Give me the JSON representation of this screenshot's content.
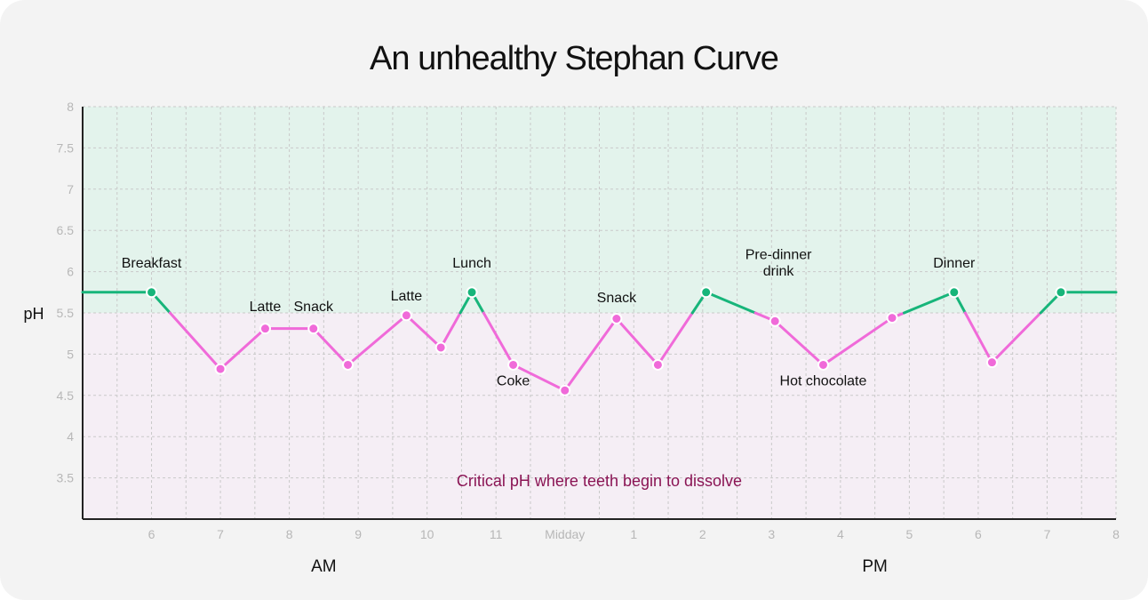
{
  "chart_data": {
    "type": "line",
    "title": "An unhealthy Stephan Curve",
    "ylabel": "pH",
    "ylim": [
      3,
      8
    ],
    "yticks": [
      "3.5",
      "4",
      "4.5",
      "5",
      "5.5",
      "6",
      "6.5",
      "7",
      "7.5",
      "8"
    ],
    "xlim": [
      5,
      20
    ],
    "xticks": [
      {
        "x": 6,
        "label": "6"
      },
      {
        "x": 7,
        "label": "7"
      },
      {
        "x": 8,
        "label": "8"
      },
      {
        "x": 9,
        "label": "9"
      },
      {
        "x": 10,
        "label": "10"
      },
      {
        "x": 11,
        "label": "11"
      },
      {
        "x": 12,
        "label": "Midday"
      },
      {
        "x": 13,
        "label": "1"
      },
      {
        "x": 14,
        "label": "2"
      },
      {
        "x": 15,
        "label": "3"
      },
      {
        "x": 16,
        "label": "4"
      },
      {
        "x": 17,
        "label": "5"
      },
      {
        "x": 18,
        "label": "6"
      },
      {
        "x": 19,
        "label": "7"
      },
      {
        "x": 20,
        "label": "8"
      }
    ],
    "periods": [
      {
        "label": "AM",
        "x": 8.5
      },
      {
        "label": "PM",
        "x": 16.5
      }
    ],
    "critical_ph": 5.5,
    "critical_label": "Critical pH where teeth begin to dissolve",
    "colors": {
      "safe_zone": "#e3f3ec",
      "danger_zone": "#f5eef5",
      "safe_line": "#17b57a",
      "danger_line": "#f06ad9",
      "critical_text": "#8a1454"
    },
    "series": [
      {
        "name": "pH",
        "points": [
          {
            "x": 5.0,
            "y": 5.75,
            "label": ""
          },
          {
            "x": 6.0,
            "y": 5.75,
            "label": "Breakfast"
          },
          {
            "x": 7.0,
            "y": 4.82,
            "label": ""
          },
          {
            "x": 7.65,
            "y": 5.31,
            "label": "Latte"
          },
          {
            "x": 8.35,
            "y": 5.31,
            "label": "Snack"
          },
          {
            "x": 8.85,
            "y": 4.87,
            "label": ""
          },
          {
            "x": 9.7,
            "y": 5.47,
            "label": "Latte"
          },
          {
            "x": 10.2,
            "y": 5.08,
            "label": ""
          },
          {
            "x": 10.65,
            "y": 5.75,
            "label": "Lunch"
          },
          {
            "x": 11.25,
            "y": 4.87,
            "label": "Coke"
          },
          {
            "x": 12.0,
            "y": 4.56,
            "label": ""
          },
          {
            "x": 12.75,
            "y": 5.43,
            "label": "Snack"
          },
          {
            "x": 13.35,
            "y": 4.87,
            "label": ""
          },
          {
            "x": 14.05,
            "y": 5.75,
            "label": ""
          },
          {
            "x": 15.05,
            "y": 5.4,
            "label": "Pre-dinner drink"
          },
          {
            "x": 15.75,
            "y": 4.87,
            "label": "Hot chocolate"
          },
          {
            "x": 16.75,
            "y": 5.44,
            "label": ""
          },
          {
            "x": 17.65,
            "y": 5.75,
            "label": "Dinner"
          },
          {
            "x": 18.2,
            "y": 4.9,
            "label": ""
          },
          {
            "x": 19.2,
            "y": 5.75,
            "label": ""
          },
          {
            "x": 20.0,
            "y": 5.75,
            "label": ""
          }
        ]
      }
    ],
    "annotations": [
      {
        "id": "breakfast",
        "text": "Breakfast",
        "x": 6.0,
        "y": 6.05
      },
      {
        "id": "latte-1",
        "text": "Latte",
        "x": 7.65,
        "y": 5.52
      },
      {
        "id": "snack-1",
        "text": "Snack",
        "x": 8.35,
        "y": 5.52
      },
      {
        "id": "latte-2",
        "text": "Latte",
        "x": 9.7,
        "y": 5.65
      },
      {
        "id": "lunch",
        "text": "Lunch",
        "x": 10.65,
        "y": 6.05
      },
      {
        "id": "coke",
        "text": "Coke",
        "x": 11.25,
        "y": 4.62
      },
      {
        "id": "snack-2",
        "text": "Snack",
        "x": 12.75,
        "y": 5.63
      },
      {
        "id": "predinner-1",
        "text": "Pre-dinner",
        "x": 15.1,
        "y": 6.15
      },
      {
        "id": "predinner-2",
        "text": "drink",
        "x": 15.1,
        "y": 5.95
      },
      {
        "id": "hot-chocolate",
        "text": "Hot chocolate",
        "x": 15.75,
        "y": 4.62
      },
      {
        "id": "dinner",
        "text": "Dinner",
        "x": 17.65,
        "y": 6.05
      }
    ]
  }
}
